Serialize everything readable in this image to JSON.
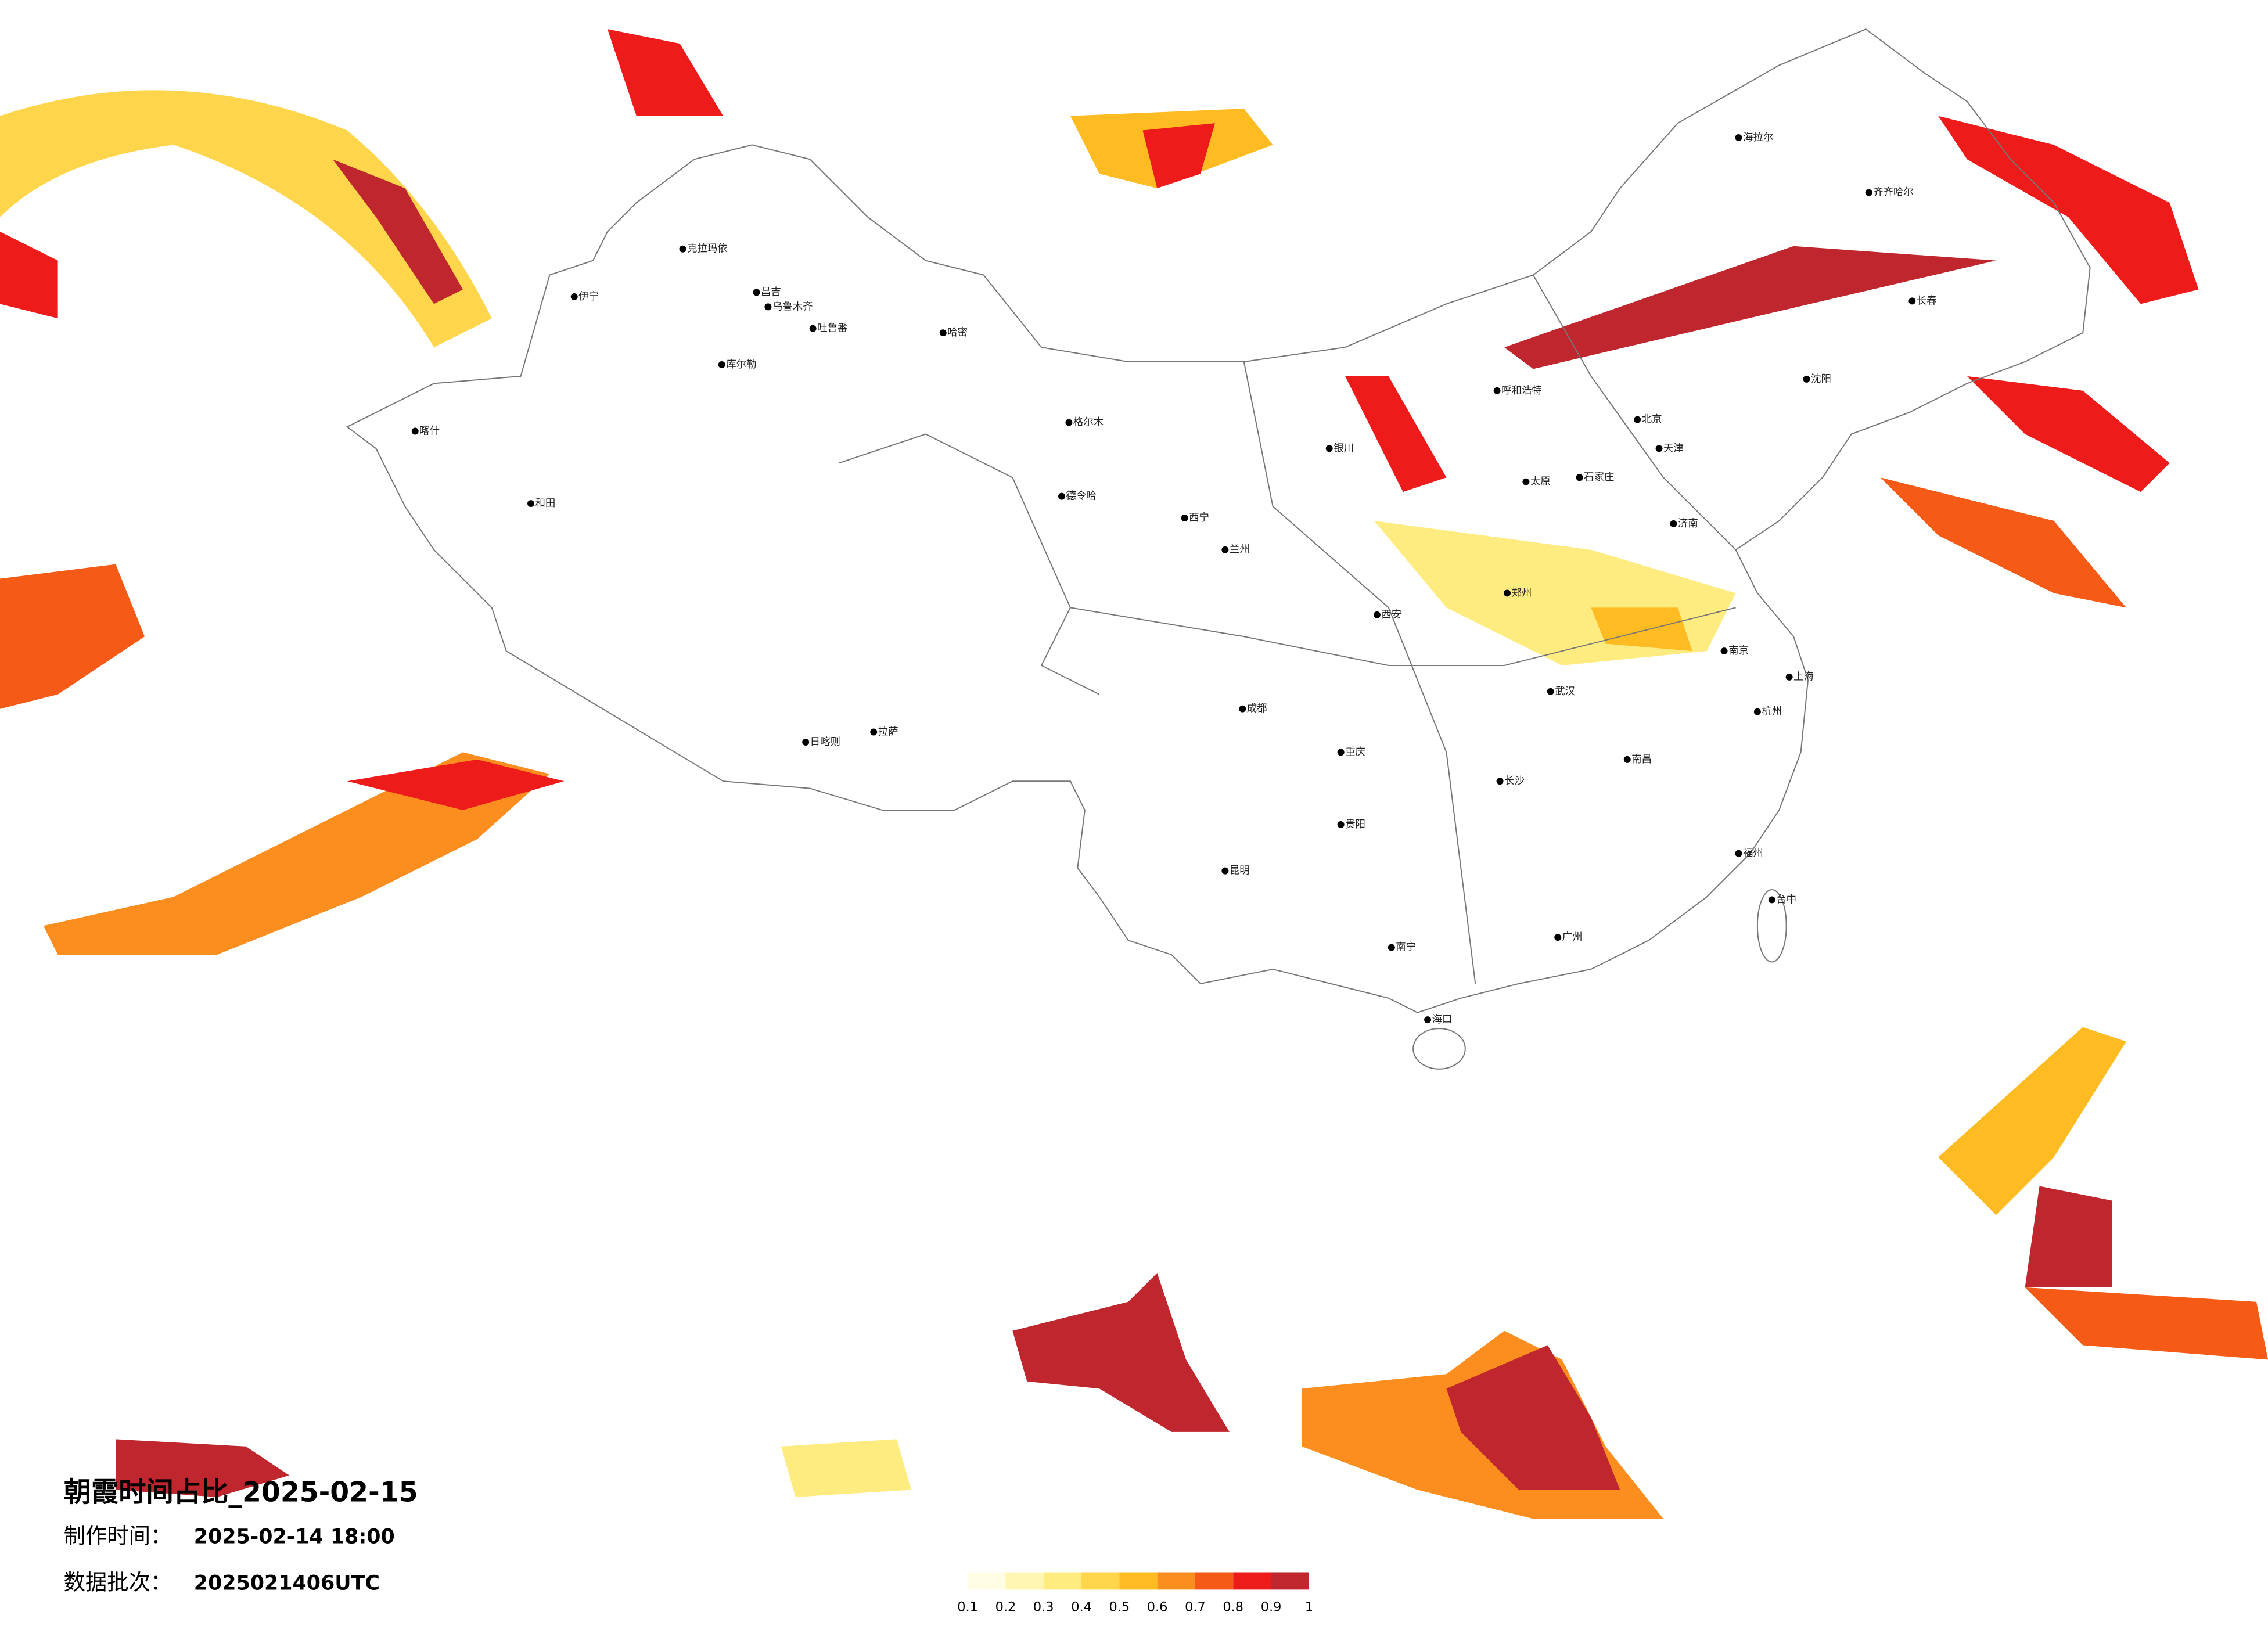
{
  "header": {
    "title": "朝霞时间占比_2025-02-15",
    "made_label": "制作时间：",
    "made_value": "2025-02-14 18:00",
    "batch_label": "数据批次：",
    "batch_value": "2025021406UTC"
  },
  "legend": {
    "colors": [
      "#fffde3",
      "#fff6b4",
      "#ffec80",
      "#ffd54c",
      "#ffbb22",
      "#fb8e1e",
      "#f55a16",
      "#ee1b1b",
      "#bf262d"
    ],
    "ticks": [
      0.1,
      0.2,
      0.3,
      0.4,
      0.5,
      0.6,
      0.7,
      0.8,
      0.9,
      1
    ]
  },
  "cities": [
    "克拉玛依",
    "昌吉",
    "乌鲁木齐",
    "吐鲁番",
    "哈密",
    "库尔勒",
    "伊宁",
    "和田",
    "喀什",
    "拉萨",
    "日喀则",
    "格尔木",
    "德令哈",
    "西宁",
    "兰州",
    "银川",
    "呼和浩特",
    "海拉尔",
    "齐齐哈尔",
    "长春",
    "沈阳",
    "北京",
    "天津",
    "石家庄",
    "太原",
    "济南",
    "郑州",
    "西安",
    "南京",
    "上海",
    "杭州",
    "武汉",
    "长沙",
    "南昌",
    "福州",
    "重庆",
    "成都",
    "贵阳",
    "昆明",
    "南宁",
    "广州",
    "海口",
    "台中"
  ]
}
